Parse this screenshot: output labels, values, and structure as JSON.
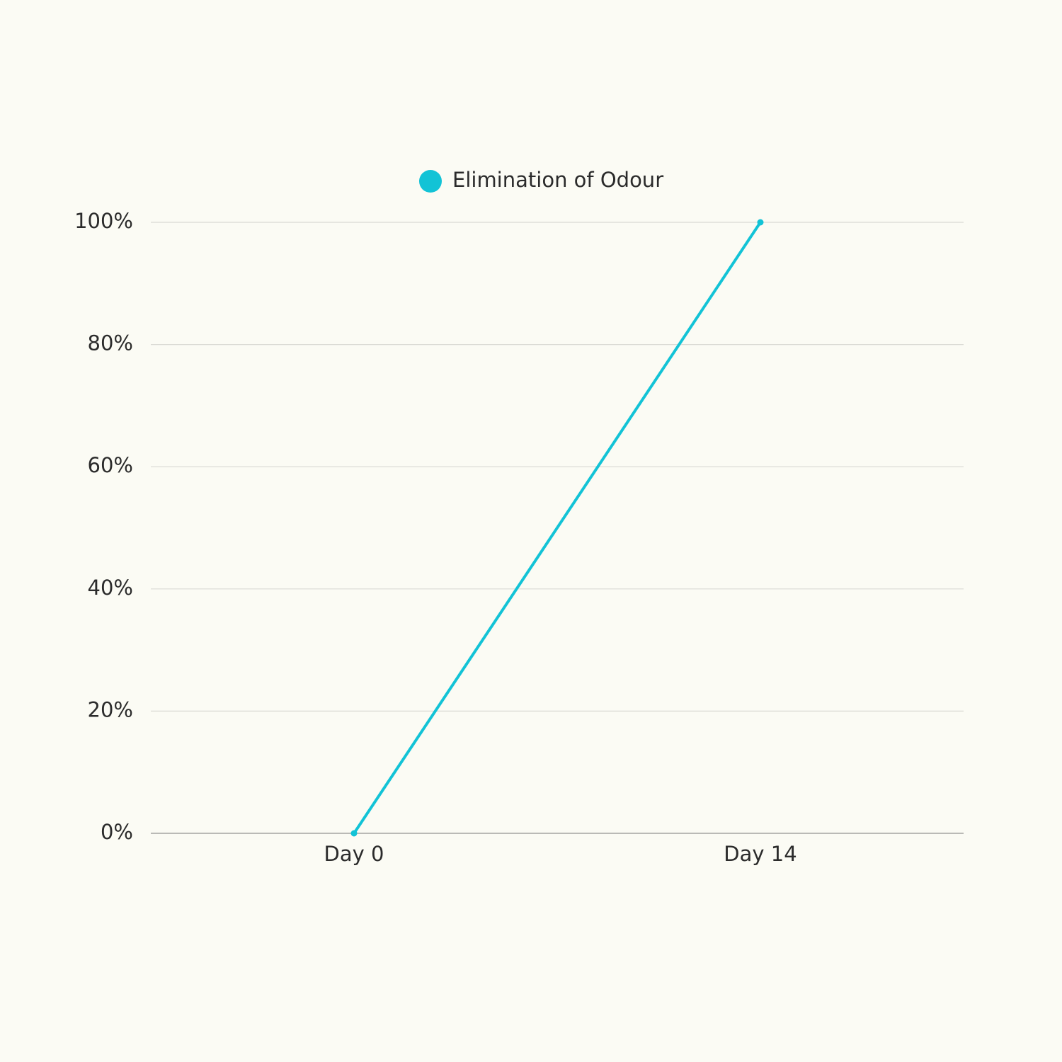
{
  "chart_data": {
    "type": "line",
    "categories": [
      "Day 0",
      "Day 14"
    ],
    "series": [
      {
        "name": "Elimination of Odour",
        "color": "#12c3d6",
        "values": [
          0,
          100
        ]
      }
    ],
    "ylim": [
      0,
      100
    ],
    "yticks": [
      {
        "value": 0,
        "label": "0%"
      },
      {
        "value": 20,
        "label": "20%"
      },
      {
        "value": 40,
        "label": "40%"
      },
      {
        "value": 60,
        "label": "60%"
      },
      {
        "value": 80,
        "label": "80%"
      },
      {
        "value": 100,
        "label": "100%"
      }
    ],
    "grid": true,
    "legend": "top"
  }
}
